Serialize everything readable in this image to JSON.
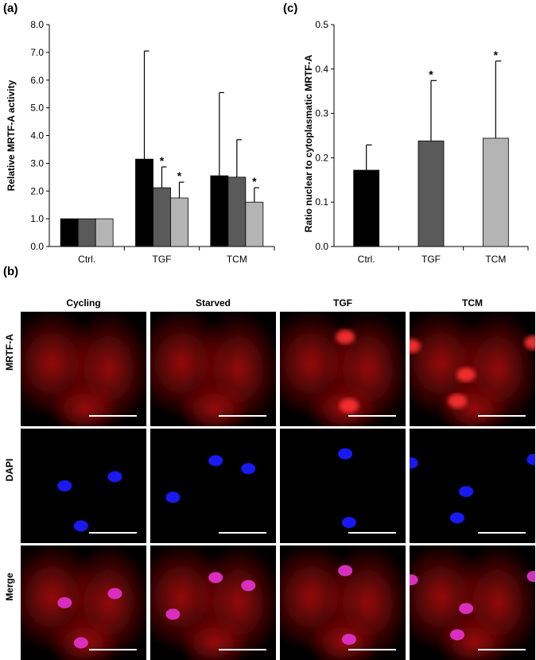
{
  "panels": {
    "a": "(a)",
    "b": "(b)",
    "c": "(c)"
  },
  "chart_data": [
    {
      "type": "bar",
      "panel": "(a)",
      "ylabel": "Relative MRTF-A activity",
      "xlabel": "",
      "categories": [
        "Ctrl.",
        "TGF",
        "TCM"
      ],
      "ylim": [
        0,
        8
      ],
      "yticks": [
        "0.0",
        "1.0",
        "2.0",
        "3.0",
        "4.0",
        "5.0",
        "6.0",
        "7.0",
        "8.0"
      ],
      "series": [
        {
          "color": "#000000",
          "values": [
            1.0,
            3.15,
            2.55
          ],
          "errors": [
            0,
            3.9,
            3.0
          ],
          "stars": [
            false,
            false,
            false
          ]
        },
        {
          "color": "#5a5a5a",
          "values": [
            1.0,
            2.12,
            2.5
          ],
          "errors": [
            0,
            0.75,
            1.35
          ],
          "stars": [
            false,
            true,
            false
          ]
        },
        {
          "color": "#b4b4b4",
          "values": [
            1.0,
            1.75,
            1.6
          ],
          "errors": [
            0,
            0.57,
            0.52
          ],
          "stars": [
            false,
            true,
            true
          ]
        }
      ],
      "star": "*"
    },
    {
      "type": "bar",
      "panel": "(c)",
      "ylabel": "Ratio nuclear to cytoplasmatic MRTF-A",
      "xlabel": "",
      "categories": [
        "Ctrl.",
        "TGF",
        "TCM"
      ],
      "ylim": [
        0,
        0.5
      ],
      "yticks": [
        "0.0",
        "0.1",
        "0.2",
        "0.3",
        "0.4",
        "0.5"
      ],
      "values": [
        0.172,
        0.238,
        0.244
      ],
      "errors": [
        0.057,
        0.136,
        0.174
      ],
      "colors": [
        "#000000",
        "#5a5a5a",
        "#b4b4b4"
      ],
      "stars": [
        false,
        true,
        true
      ],
      "star": "*"
    }
  ],
  "micrographs": {
    "columns": [
      "Cycling",
      "Starved",
      "TGF",
      "TCM"
    ],
    "rows": [
      "MRTF-A",
      "DAPI",
      "Merge"
    ],
    "colors": {
      "mrtf": "#e01010",
      "dapi": "#1a1aff",
      "merge_nucleus": "#e030c8",
      "background": "#000000",
      "scale_bar": "#ffffff"
    }
  }
}
